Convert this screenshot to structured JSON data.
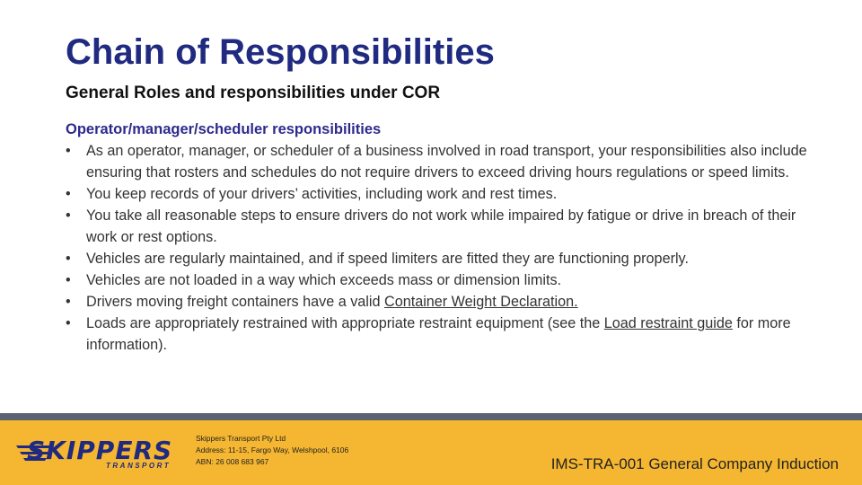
{
  "slide": {
    "title": "Chain of Responsibilities",
    "subtitle": "General Roles and responsibilities under COR",
    "section_heading": "Operator/manager/scheduler responsibilities",
    "bullets": [
      "As an operator, manager, or scheduler of a business involved in road transport, your responsibilities also include ensuring that rosters and schedules do not require drivers to exceed driving hours regulations or speed limits.",
      "You keep records of your drivers’ activities, including work and rest times.",
      "You take all reasonable steps to ensure drivers do not work while impaired by fatigue or drive in breach of their work or rest options.",
      "Vehicles are regularly maintained, and if speed limiters are fitted they are functioning properly.",
      "Vehicles are not loaded in a way which exceeds mass or dimension limits."
    ],
    "bullet_6": {
      "before": "Drivers moving freight containers have a valid ",
      "link": "Container Weight Declaration."
    },
    "bullet_7": {
      "before": "Loads are appropriately restrained with appropriate restraint equipment (see the ",
      "link": "Load restraint guide",
      "after": " for more information)."
    },
    "bullet_symbol": "•"
  },
  "footer": {
    "logo_text": "SKIPPERS",
    "logo_subtext": "TRANSPORT",
    "company_name": "Skippers Transport Pty Ltd",
    "address": "Address: 11-15, Fargo Way, Welshpool, 6106",
    "abn": "ABN: 26 008 683 967",
    "doc_code": "IMS-TRA-001 General Company Induction"
  },
  "colors": {
    "title": "#1f2a80",
    "section_heading": "#2e2a8c",
    "footer_bg": "#f5b731",
    "divider": "#5b6270",
    "logo": "#1f2a80"
  }
}
